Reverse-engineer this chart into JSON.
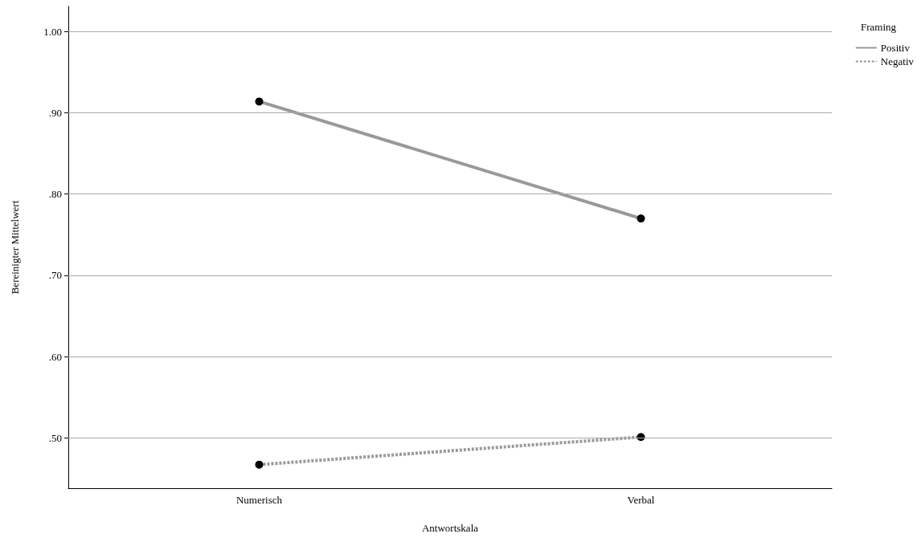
{
  "chart_data": {
    "type": "line",
    "xlabel": "Antwortskala",
    "ylabel": "Bereinigter Mittelwert",
    "legend_title": "Framing",
    "categories": [
      "Numerisch",
      "Verbal"
    ],
    "series": [
      {
        "name": "Positiv",
        "color": "#999999",
        "values": [
          0.914,
          0.77
        ],
        "line_style": "solid"
      },
      {
        "name": "Negativ",
        "color": "#999999",
        "values": [
          0.467,
          0.501
        ],
        "line_style": "dotted"
      }
    ],
    "ylim": [
      0.438,
      1.031
    ],
    "yticks": [
      {
        "value": 0.5,
        "label": ".50"
      },
      {
        "value": 0.6,
        "label": ".60"
      },
      {
        "value": 0.7,
        "label": ".70"
      },
      {
        "value": 0.8,
        "label": ".80"
      },
      {
        "value": 0.9,
        "label": ".90"
      },
      {
        "value": 1.0,
        "label": "1.00"
      }
    ],
    "grid": "y",
    "legend": "top right",
    "marker": "circle"
  }
}
